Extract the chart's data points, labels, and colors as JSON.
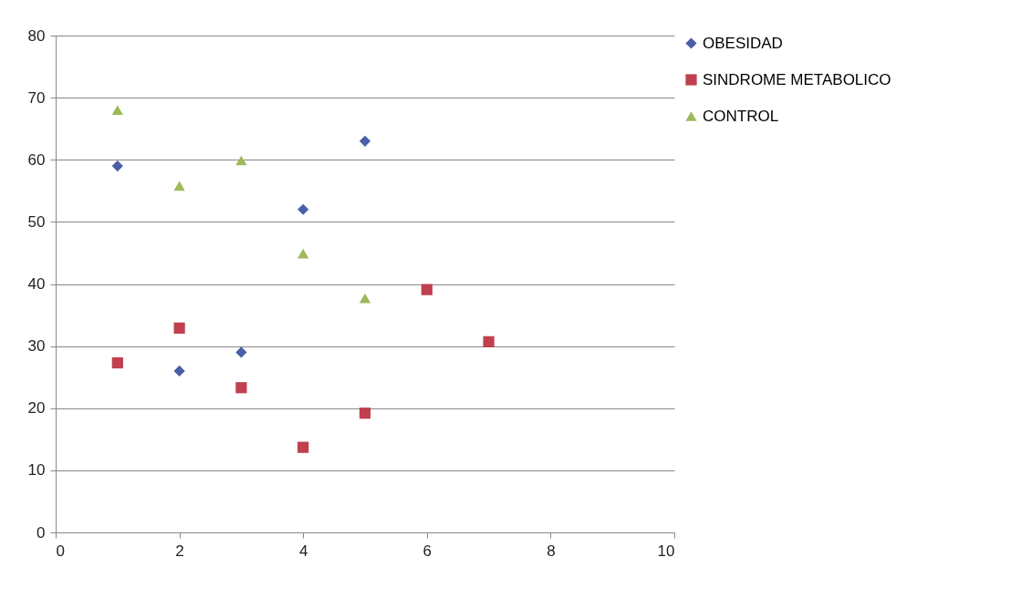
{
  "chart_data": {
    "type": "scatter",
    "x": [
      1,
      2,
      3,
      4,
      5,
      6,
      7
    ],
    "series": [
      {
        "name": "OBESIDAD",
        "color": "#4a5fa8",
        "marker": "diamond",
        "values": [
          59,
          26,
          29,
          52,
          63,
          null,
          null
        ]
      },
      {
        "name": "SINDROME METABOLICO",
        "color": "#c0404f",
        "marker": "square",
        "values": [
          27.3,
          32.9,
          23.3,
          13.7,
          19.2,
          39.1,
          30.7
        ]
      },
      {
        "name": "CONTROL",
        "color": "#9bbb59",
        "marker": "triangle",
        "values": [
          68,
          55.8,
          59.9,
          44.9,
          37.7,
          null,
          null
        ]
      }
    ],
    "xlim": [
      0,
      10
    ],
    "xticks": [
      0,
      2,
      4,
      6,
      8,
      10
    ],
    "ylim": [
      0,
      80
    ],
    "yticks": [
      0,
      10,
      20,
      30,
      40,
      50,
      60,
      70,
      80
    ],
    "grid": "y",
    "legend": "right"
  }
}
